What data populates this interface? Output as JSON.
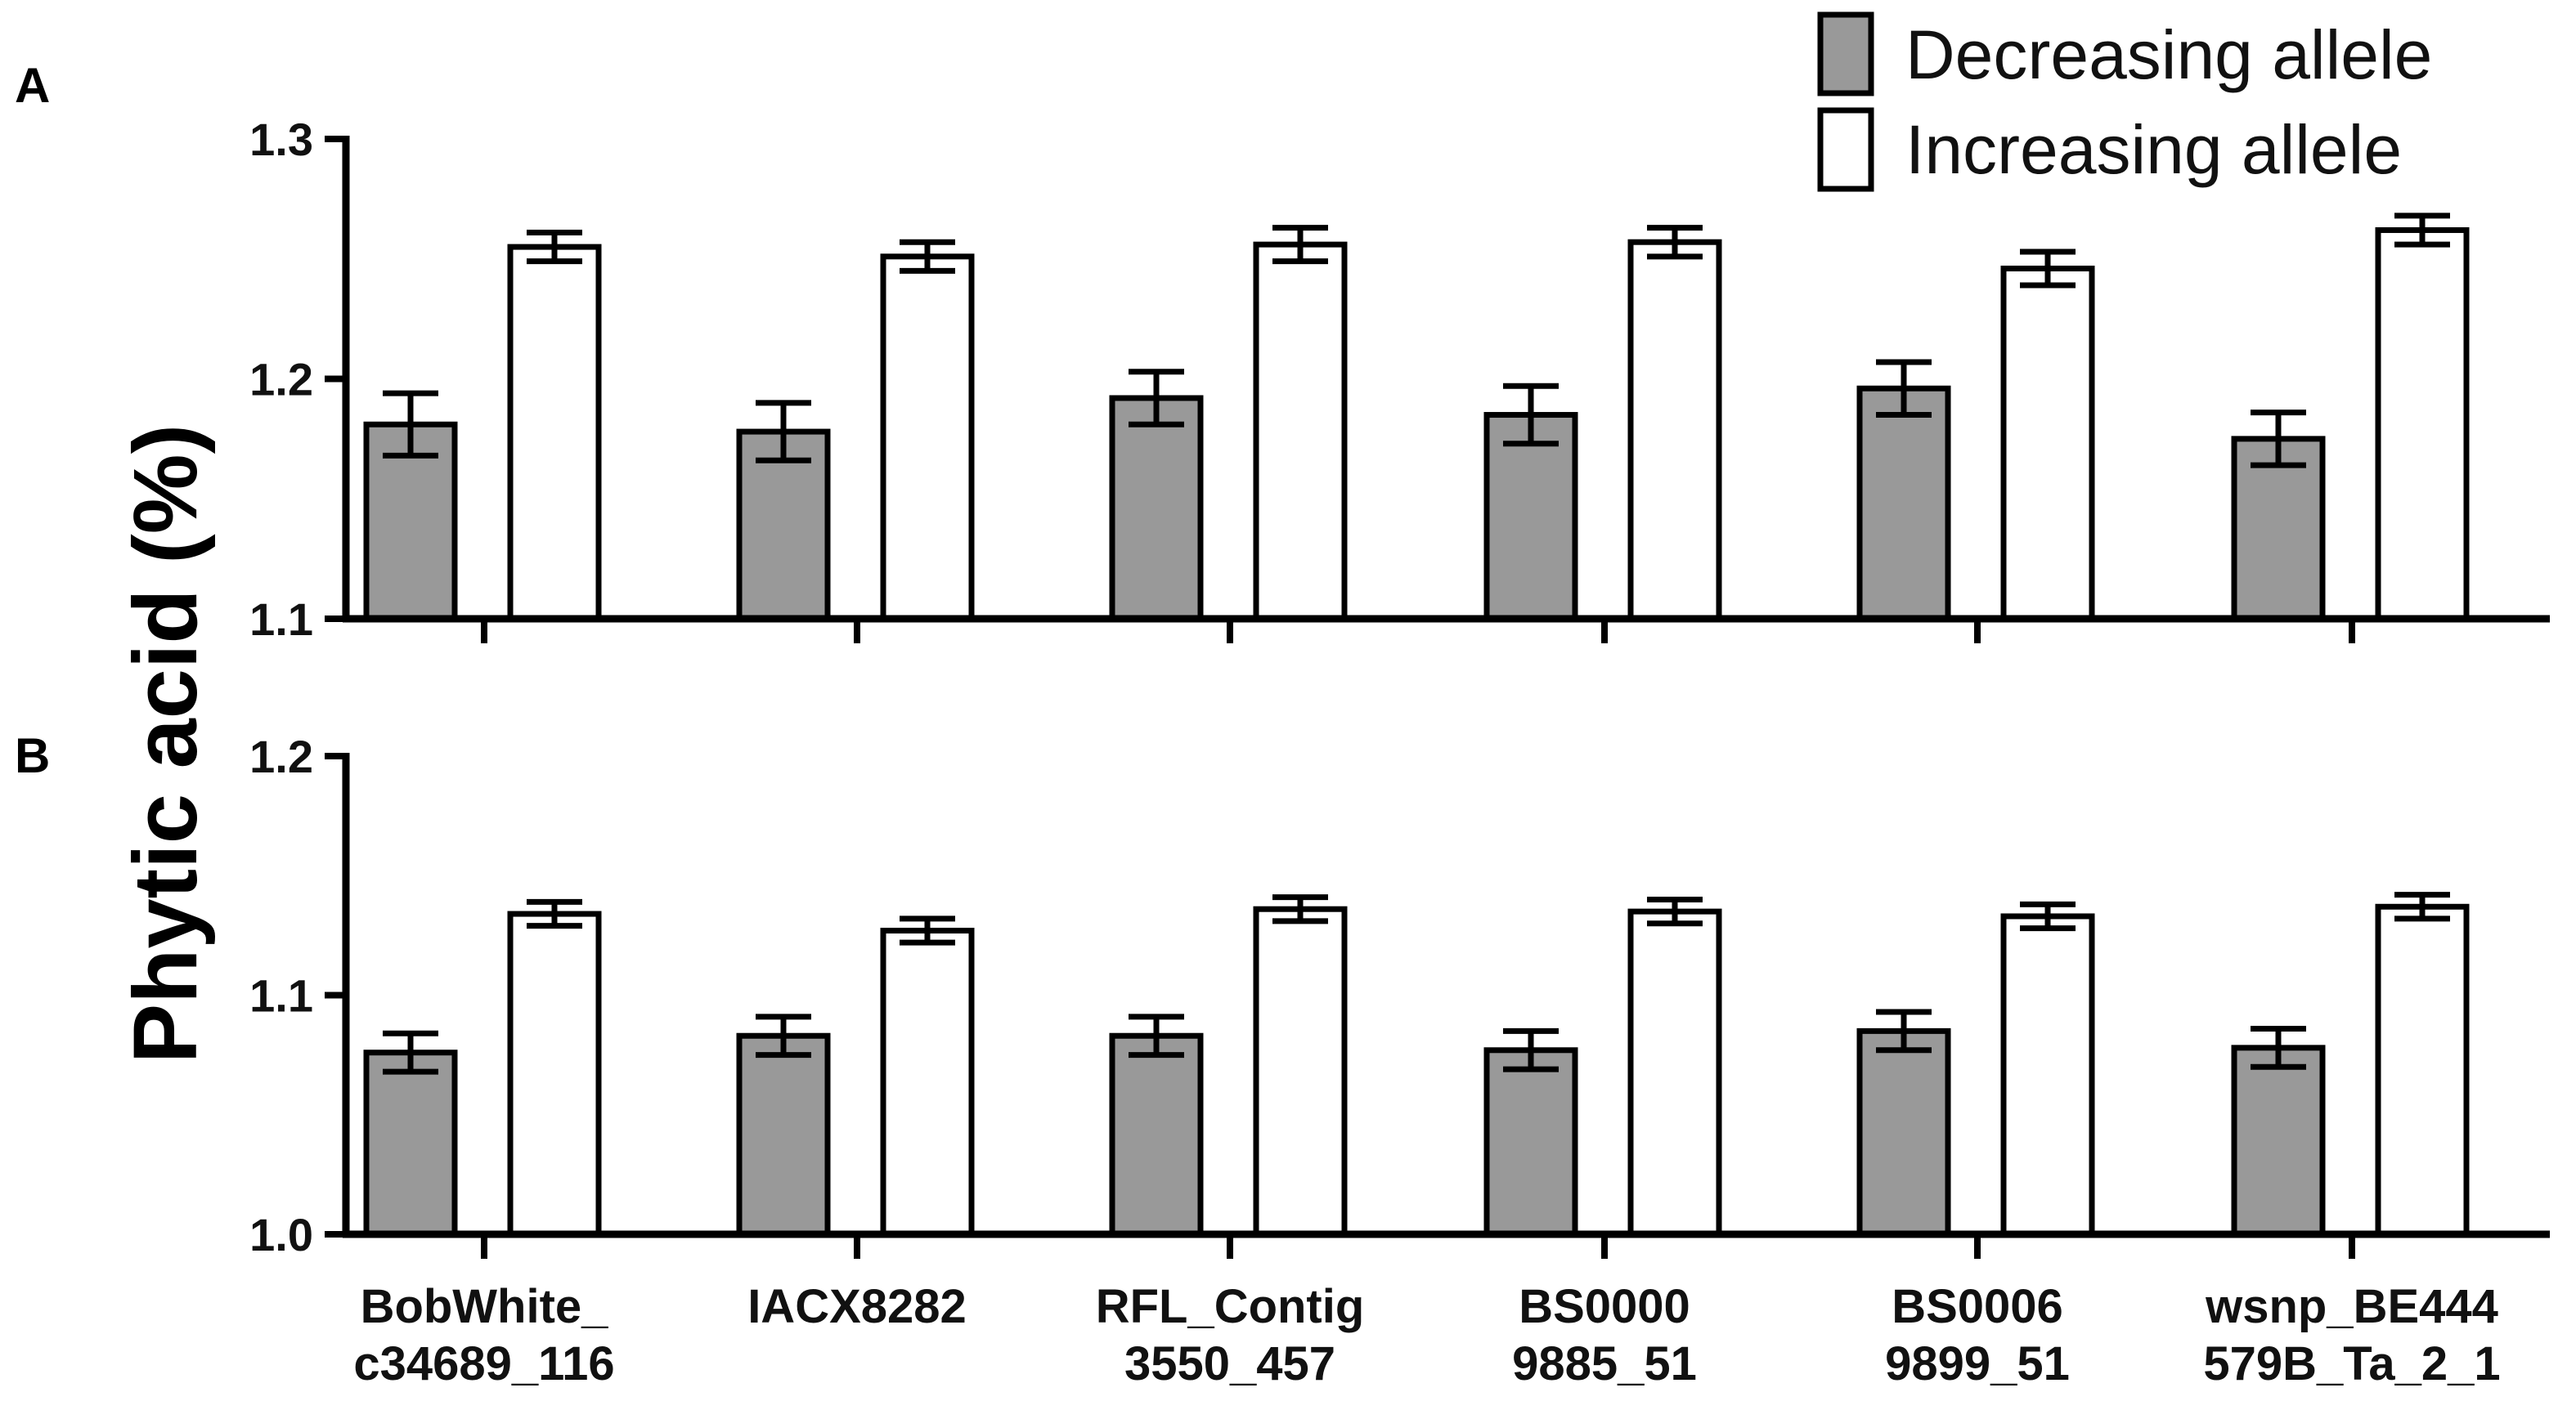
{
  "colors": {
    "decreasing": "#999999",
    "increasing": "#ffffff",
    "outline": "#000000"
  },
  "chart_data": {
    "type": "bar",
    "ylabel": "Phytic acid (%)",
    "legend": {
      "position": "top-right",
      "entries": [
        "Decreasing allele",
        "Increasing allele"
      ]
    },
    "categories": [
      [
        "BobWhite_",
        "c34689_116"
      ],
      [
        "IACX8282"
      ],
      [
        "RFL_Contig",
        "3550_457"
      ],
      [
        "BS0000",
        "9885_51"
      ],
      [
        "BS0006",
        "9899_51"
      ],
      [
        "wsnp_BE444",
        "579B_Ta_2_1"
      ]
    ],
    "panels": [
      {
        "label": "A",
        "ylim": [
          1.1,
          1.3
        ],
        "yticks": [
          "1.1",
          "1.2",
          "1.3"
        ],
        "series": [
          {
            "name": "Decreasing allele",
            "values": [
              1.181,
              1.178,
              1.192,
              1.185,
              1.196,
              1.175
            ],
            "errors": [
              0.013,
              0.012,
              0.011,
              0.012,
              0.011,
              0.011
            ]
          },
          {
            "name": "Increasing allele",
            "values": [
              1.255,
              1.251,
              1.256,
              1.257,
              1.246,
              1.262
            ],
            "errors": [
              0.006,
              0.006,
              0.007,
              0.006,
              0.007,
              0.006
            ]
          }
        ]
      },
      {
        "label": "B",
        "ylim": [
          1.0,
          1.2
        ],
        "yticks": [
          "1.0",
          "1.1",
          "1.2"
        ],
        "series": [
          {
            "name": "Decreasing allele",
            "values": [
              1.076,
              1.083,
              1.083,
              1.077,
              1.085,
              1.078
            ],
            "errors": [
              0.008,
              0.008,
              0.008,
              0.008,
              0.008,
              0.008
            ]
          },
          {
            "name": "Increasing allele",
            "values": [
              1.134,
              1.127,
              1.136,
              1.135,
              1.133,
              1.137
            ],
            "errors": [
              0.005,
              0.005,
              0.005,
              0.005,
              0.005,
              0.005
            ]
          }
        ]
      }
    ]
  }
}
